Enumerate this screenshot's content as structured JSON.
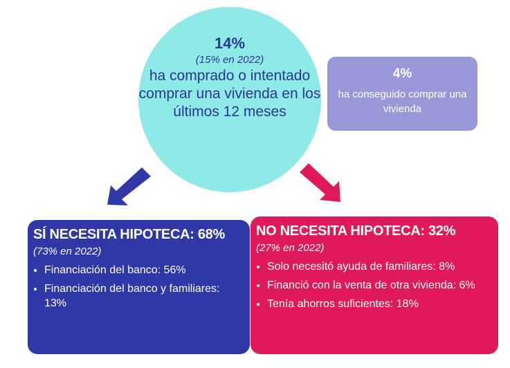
{
  "circle": {
    "pct": "14%",
    "prev": "(15% en 2022)",
    "desc": "ha comprado o intentado comprar una vivienda en los últimos 12 meses"
  },
  "purple_box": {
    "pct": "4%",
    "desc": "ha conseguido comprar una vivienda"
  },
  "left_box": {
    "title": "SÍ NECESITA HIPOTECA: 68%",
    "prev": "(73% en 2022)",
    "items": [
      "Financiación del banco: 56%",
      "Financiación del banco y familiares: 13%"
    ]
  },
  "right_box": {
    "title": "NO NECESITA HIPOTECA: 32%",
    "prev": "(27% en 2022)",
    "items": [
      "Solo necesitó ayuda de familiares: 8%",
      "Financió con la venta de otra vivienda: 6%",
      "Tenía ahorros suficientes: 18%"
    ]
  },
  "colors": {
    "circle": "#8eeae6",
    "purple": "#9898d8",
    "blue": "#3038a8",
    "pink": "#e01a5a",
    "circle_text": "#2a3592"
  }
}
